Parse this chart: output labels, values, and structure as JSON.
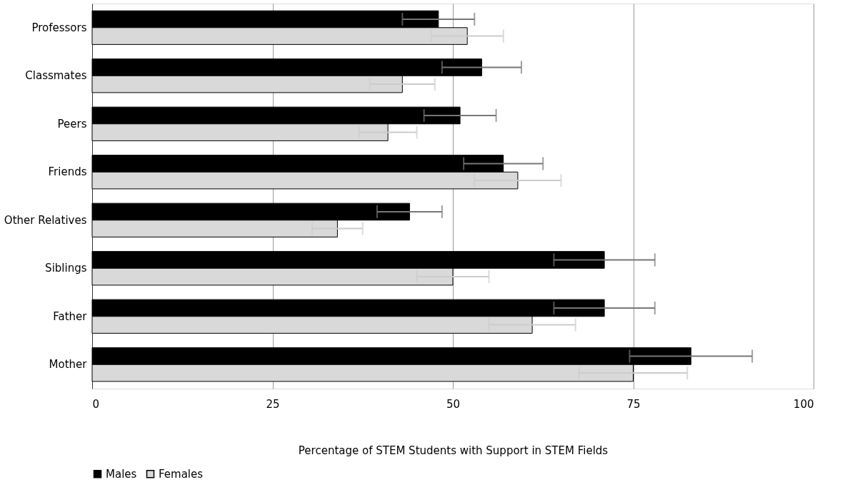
{
  "chart_data": {
    "type": "bar",
    "orientation": "horizontal",
    "categories": [
      "Professors",
      "Classmates",
      "Peers",
      "Friends",
      "Other Relatives",
      "Siblings",
      "Father",
      "Mother"
    ],
    "series": [
      {
        "name": "Males",
        "color": "#000000",
        "values": [
          48,
          54,
          51,
          57,
          44,
          71,
          71,
          83
        ],
        "errors": [
          5,
          5.5,
          5,
          5.5,
          4.5,
          7,
          7,
          8.5
        ]
      },
      {
        "name": "Females",
        "color": "#d9d9d9",
        "values": [
          52,
          43,
          41,
          59,
          34,
          50,
          61,
          75
        ],
        "errors": [
          5,
          4.5,
          4,
          6,
          3.5,
          5,
          6,
          7.5
        ]
      }
    ],
    "xlim": [
      0,
      100
    ],
    "xticks": [
      0,
      25,
      50,
      75,
      100
    ],
    "xlabel": "Percentage of STEM Students with Support in STEM Fields",
    "grid": "x",
    "legend": "bottom"
  }
}
